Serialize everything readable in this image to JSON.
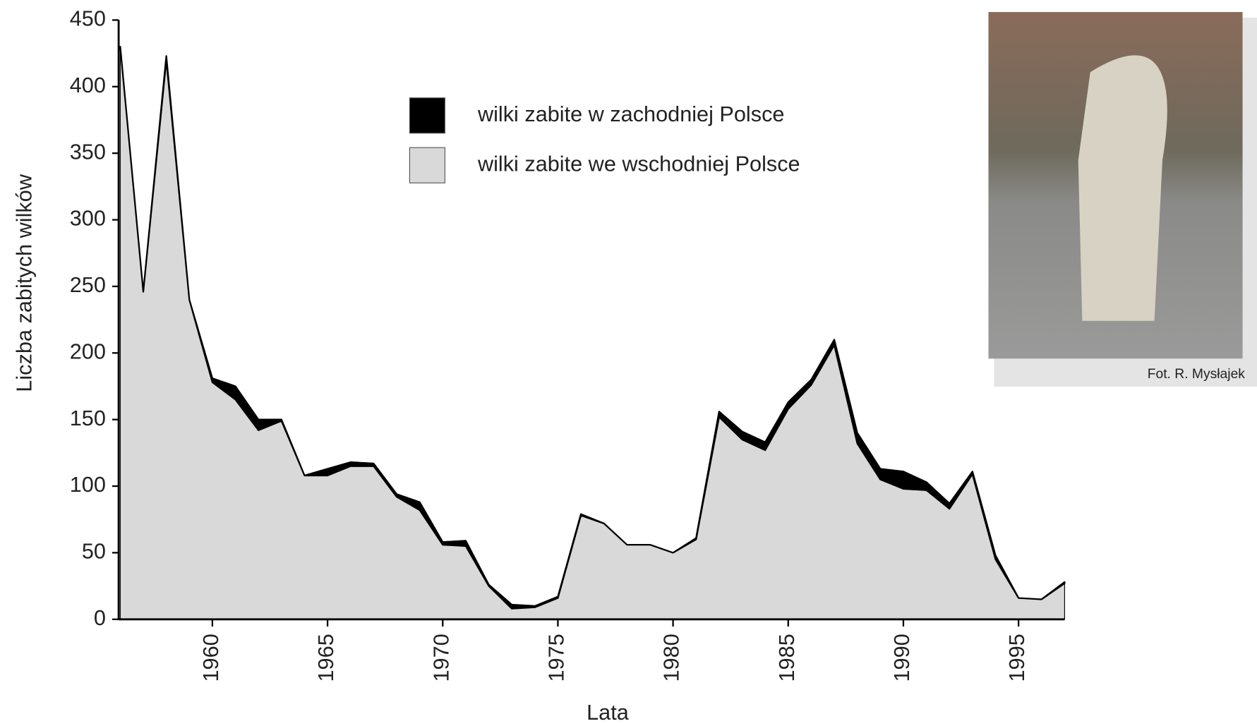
{
  "chart_data": {
    "type": "stacked_area",
    "y_label": "Liczba zabitych wilków",
    "x_label": "Lata",
    "x": [
      1956,
      1957,
      1958,
      1959,
      1960,
      1961,
      1962,
      1963,
      1964,
      1965,
      1966,
      1967,
      1968,
      1969,
      1970,
      1971,
      1972,
      1973,
      1974,
      1975,
      1976,
      1977,
      1978,
      1979,
      1980,
      1981,
      1982,
      1983,
      1984,
      1985,
      1986,
      1987,
      1988,
      1989,
      1990,
      1991,
      1992,
      1993,
      1994,
      1995,
      1996,
      1997
    ],
    "series": [
      {
        "name": "wilki zabite we wschodniej Polsce",
        "color": "#d9d9d9",
        "values": [
          430,
          246,
          420,
          240,
          178,
          165,
          142,
          149,
          108,
          108,
          115,
          115,
          92,
          82,
          56,
          55,
          25,
          8,
          9,
          16,
          78,
          72,
          56,
          56,
          50,
          60,
          152,
          135,
          127,
          158,
          176,
          206,
          132,
          105,
          98,
          97,
          83,
          109,
          45,
          16,
          15,
          27
        ]
      },
      {
        "name": "wilki zabite w zachodniej Polsce",
        "color": "#000000",
        "values": [
          0,
          0,
          3,
          0,
          3,
          10,
          8,
          1,
          0,
          5,
          3,
          2,
          2,
          6,
          2,
          4,
          1,
          3,
          1,
          1,
          1,
          0,
          0,
          0,
          0,
          1,
          4,
          6,
          6,
          5,
          4,
          4,
          8,
          8,
          13,
          6,
          4,
          2,
          3,
          0,
          0,
          1
        ]
      }
    ],
    "xlim": [
      1956,
      1997
    ],
    "xticks": [
      1960,
      1965,
      1970,
      1975,
      1980,
      1985,
      1990,
      1995
    ],
    "ylim": [
      0,
      450
    ],
    "yticks": [
      0,
      50,
      100,
      150,
      200,
      250,
      300,
      350,
      400,
      450
    ],
    "legend_order": [
      1,
      0
    ]
  },
  "photo": {
    "caption": "Fot. R. Mysłajek"
  }
}
